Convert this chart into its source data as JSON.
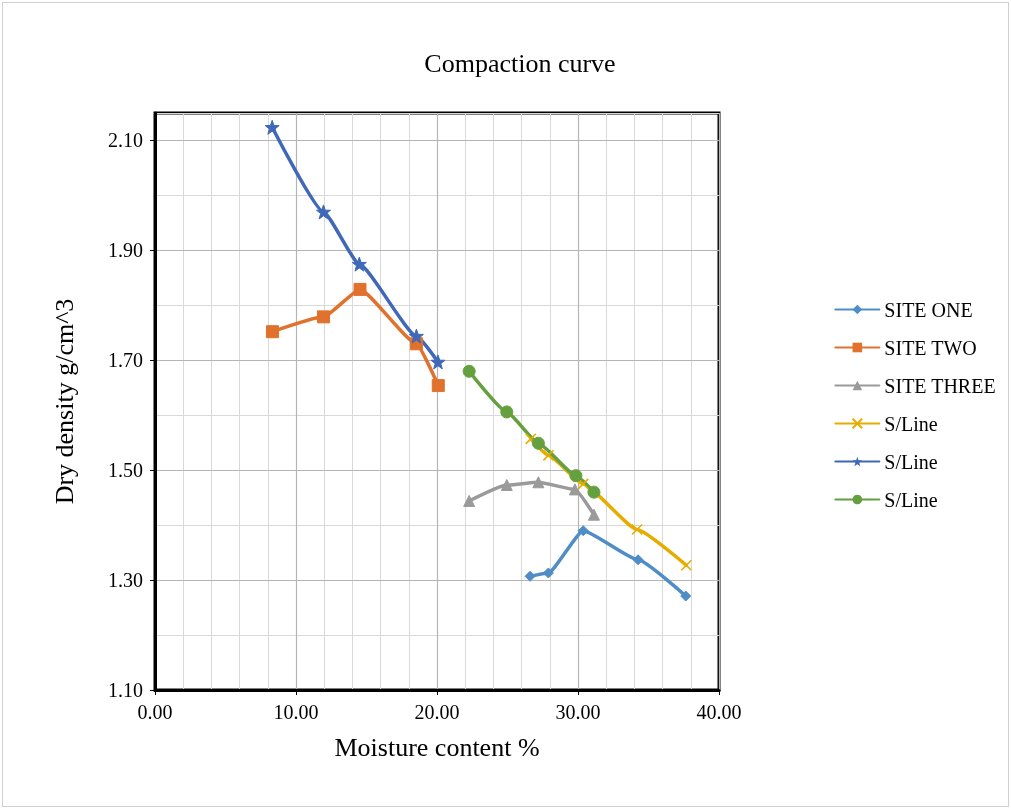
{
  "chart_data": {
    "type": "line",
    "title": "Compaction curve",
    "xlabel": "Moisture content %",
    "ylabel": "Dry density g/cm^3",
    "xlim": [
      0,
      40
    ],
    "xticks": [
      {
        "value": 0,
        "label": "0.00"
      },
      {
        "value": 10,
        "label": "10.00"
      },
      {
        "value": 20,
        "label": "20.00"
      },
      {
        "value": 30,
        "label": "30.00"
      },
      {
        "value": 40,
        "label": "40.00"
      }
    ],
    "ylim": [
      1.1,
      2.15
    ],
    "yticks": [
      {
        "value": 1.1,
        "label": "1.10"
      },
      {
        "value": 1.3,
        "label": "1.30"
      },
      {
        "value": 1.5,
        "label": "1.50"
      },
      {
        "value": 1.7,
        "label": "1.70"
      },
      {
        "value": 1.9,
        "label": "1.90"
      },
      {
        "value": 2.1,
        "label": "2.10"
      }
    ],
    "grid": true,
    "legend": "right",
    "series": [
      {
        "name": "SITE ONE",
        "color": "#4f8dc6",
        "marker": "diamond",
        "x": [
          26.6,
          27.9,
          30.37,
          34.26,
          37.64
        ],
        "values": [
          1.307,
          1.313,
          1.39,
          1.337,
          1.271
        ]
      },
      {
        "name": "SITE TWO",
        "color": "#e0722e",
        "marker": "square",
        "x": [
          8.33,
          11.95,
          14.54,
          18.54,
          20.09
        ],
        "values": [
          1.752,
          1.779,
          1.829,
          1.73,
          1.654
        ]
      },
      {
        "name": "SITE THREE",
        "color": "#9a9a9a",
        "marker": "triangle",
        "x": [
          22.28,
          24.95,
          27.19,
          29.78,
          31.13
        ],
        "values": [
          1.444,
          1.473,
          1.478,
          1.465,
          1.419
        ]
      },
      {
        "name": "S/Line",
        "color": "#e6ad00",
        "marker": "cross",
        "x": [
          26.65,
          27.9,
          30.37,
          34.19,
          37.68
        ],
        "values": [
          1.557,
          1.527,
          1.475,
          1.392,
          1.327
        ]
      },
      {
        "name": "S/Line",
        "color": "#3f68b8",
        "marker": "star",
        "x": [
          8.31,
          11.95,
          14.49,
          18.54,
          20.07
        ],
        "values": [
          2.124,
          1.97,
          1.875,
          1.744,
          1.697
        ]
      },
      {
        "name": "S/Line",
        "color": "#65a03f",
        "marker": "circle",
        "x": [
          22.28,
          24.95,
          27.19,
          29.85,
          31.13
        ],
        "values": [
          1.68,
          1.606,
          1.549,
          1.49,
          1.46
        ]
      }
    ]
  }
}
